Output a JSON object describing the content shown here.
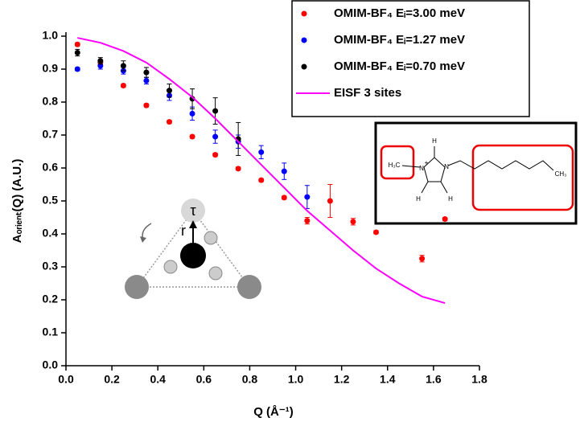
{
  "chart_data": {
    "type": "scatter",
    "x_label": "Q (Å⁻¹)",
    "y_label": "Aₒᵣᵢₑₙₜ(Q) (A.U.)",
    "xlim": [
      0,
      1.8
    ],
    "ylim": [
      0,
      1.0
    ],
    "xticks": [
      {
        "value": 0,
        "label": "0.0"
      },
      0.2,
      0.4,
      0.6,
      0.8,
      {
        "value": 1,
        "label": "1.0"
      },
      1.2,
      1.4,
      1.6,
      1.8
    ],
    "yticks": [
      {
        "value": 0,
        "label": "0.0"
      },
      0.1,
      0.2,
      0.3,
      0.4,
      0.5,
      0.6,
      0.7,
      0.8,
      0.9,
      {
        "value": 1,
        "label": "1.0"
      }
    ],
    "legend": "top-right",
    "series": [
      {
        "name": "OMIM-BF₄ Eᵢ=3.00 meV",
        "color": "#ff0000",
        "style": "points",
        "x": [
          0.05,
          0.15,
          0.25,
          0.35,
          0.45,
          0.55,
          0.65,
          0.75,
          0.85,
          0.95,
          1.05,
          1.15,
          1.25,
          1.35,
          1.55,
          1.65
        ],
        "values": [
          0.975,
          0.92,
          0.85,
          0.79,
          0.74,
          0.695,
          0.64,
          0.598,
          0.563,
          0.51,
          0.44,
          0.5,
          0.437,
          0.405,
          0.325,
          0.445
        ],
        "errors": [
          0.005,
          0.005,
          0.005,
          0.005,
          0.005,
          0.005,
          0.005,
          0.005,
          0.005,
          0.005,
          0.01,
          0.05,
          0.01,
          0.005,
          0.01,
          0.005
        ]
      },
      {
        "name": "OMIM-BF₄ Eᵢ=1.27 meV",
        "color": "#0000ff",
        "style": "points",
        "x": [
          0.05,
          0.15,
          0.25,
          0.35,
          0.45,
          0.55,
          0.65,
          0.75,
          0.85,
          0.95,
          1.05
        ],
        "values": [
          0.9,
          0.91,
          0.895,
          0.865,
          0.82,
          0.765,
          0.695,
          0.68,
          0.648,
          0.59,
          0.512
        ],
        "errors": [
          0.005,
          0.01,
          0.01,
          0.01,
          0.015,
          0.02,
          0.02,
          0.02,
          0.02,
          0.025,
          0.035
        ]
      },
      {
        "name": "OMIM-BF₄ Eᵢ=0.70 meV",
        "color": "#000000",
        "style": "points",
        "x": [
          0.05,
          0.15,
          0.25,
          0.35,
          0.45,
          0.55,
          0.65,
          0.75
        ],
        "values": [
          0.95,
          0.925,
          0.91,
          0.89,
          0.835,
          0.81,
          0.773,
          0.688
        ],
        "errors": [
          0.01,
          0.01,
          0.015,
          0.015,
          0.02,
          0.03,
          0.04,
          0.05
        ]
      },
      {
        "name": "EISF 3 sites",
        "color": "#ff00ff",
        "style": "line",
        "x": [
          0.05,
          0.15,
          0.25,
          0.35,
          0.45,
          0.55,
          0.65,
          0.75,
          0.85,
          0.95,
          1.05,
          1.15,
          1.25,
          1.35,
          1.45,
          1.55,
          1.65
        ],
        "values": [
          0.995,
          0.98,
          0.955,
          0.92,
          0.87,
          0.815,
          0.75,
          0.68,
          0.61,
          0.54,
          0.47,
          0.41,
          0.35,
          0.295,
          0.25,
          0.21,
          0.19
        ]
      }
    ],
    "annotations": [
      "H₃C",
      "N",
      "+",
      "H",
      "N",
      "H",
      "H",
      "CH₃",
      "τ",
      "r"
    ]
  }
}
